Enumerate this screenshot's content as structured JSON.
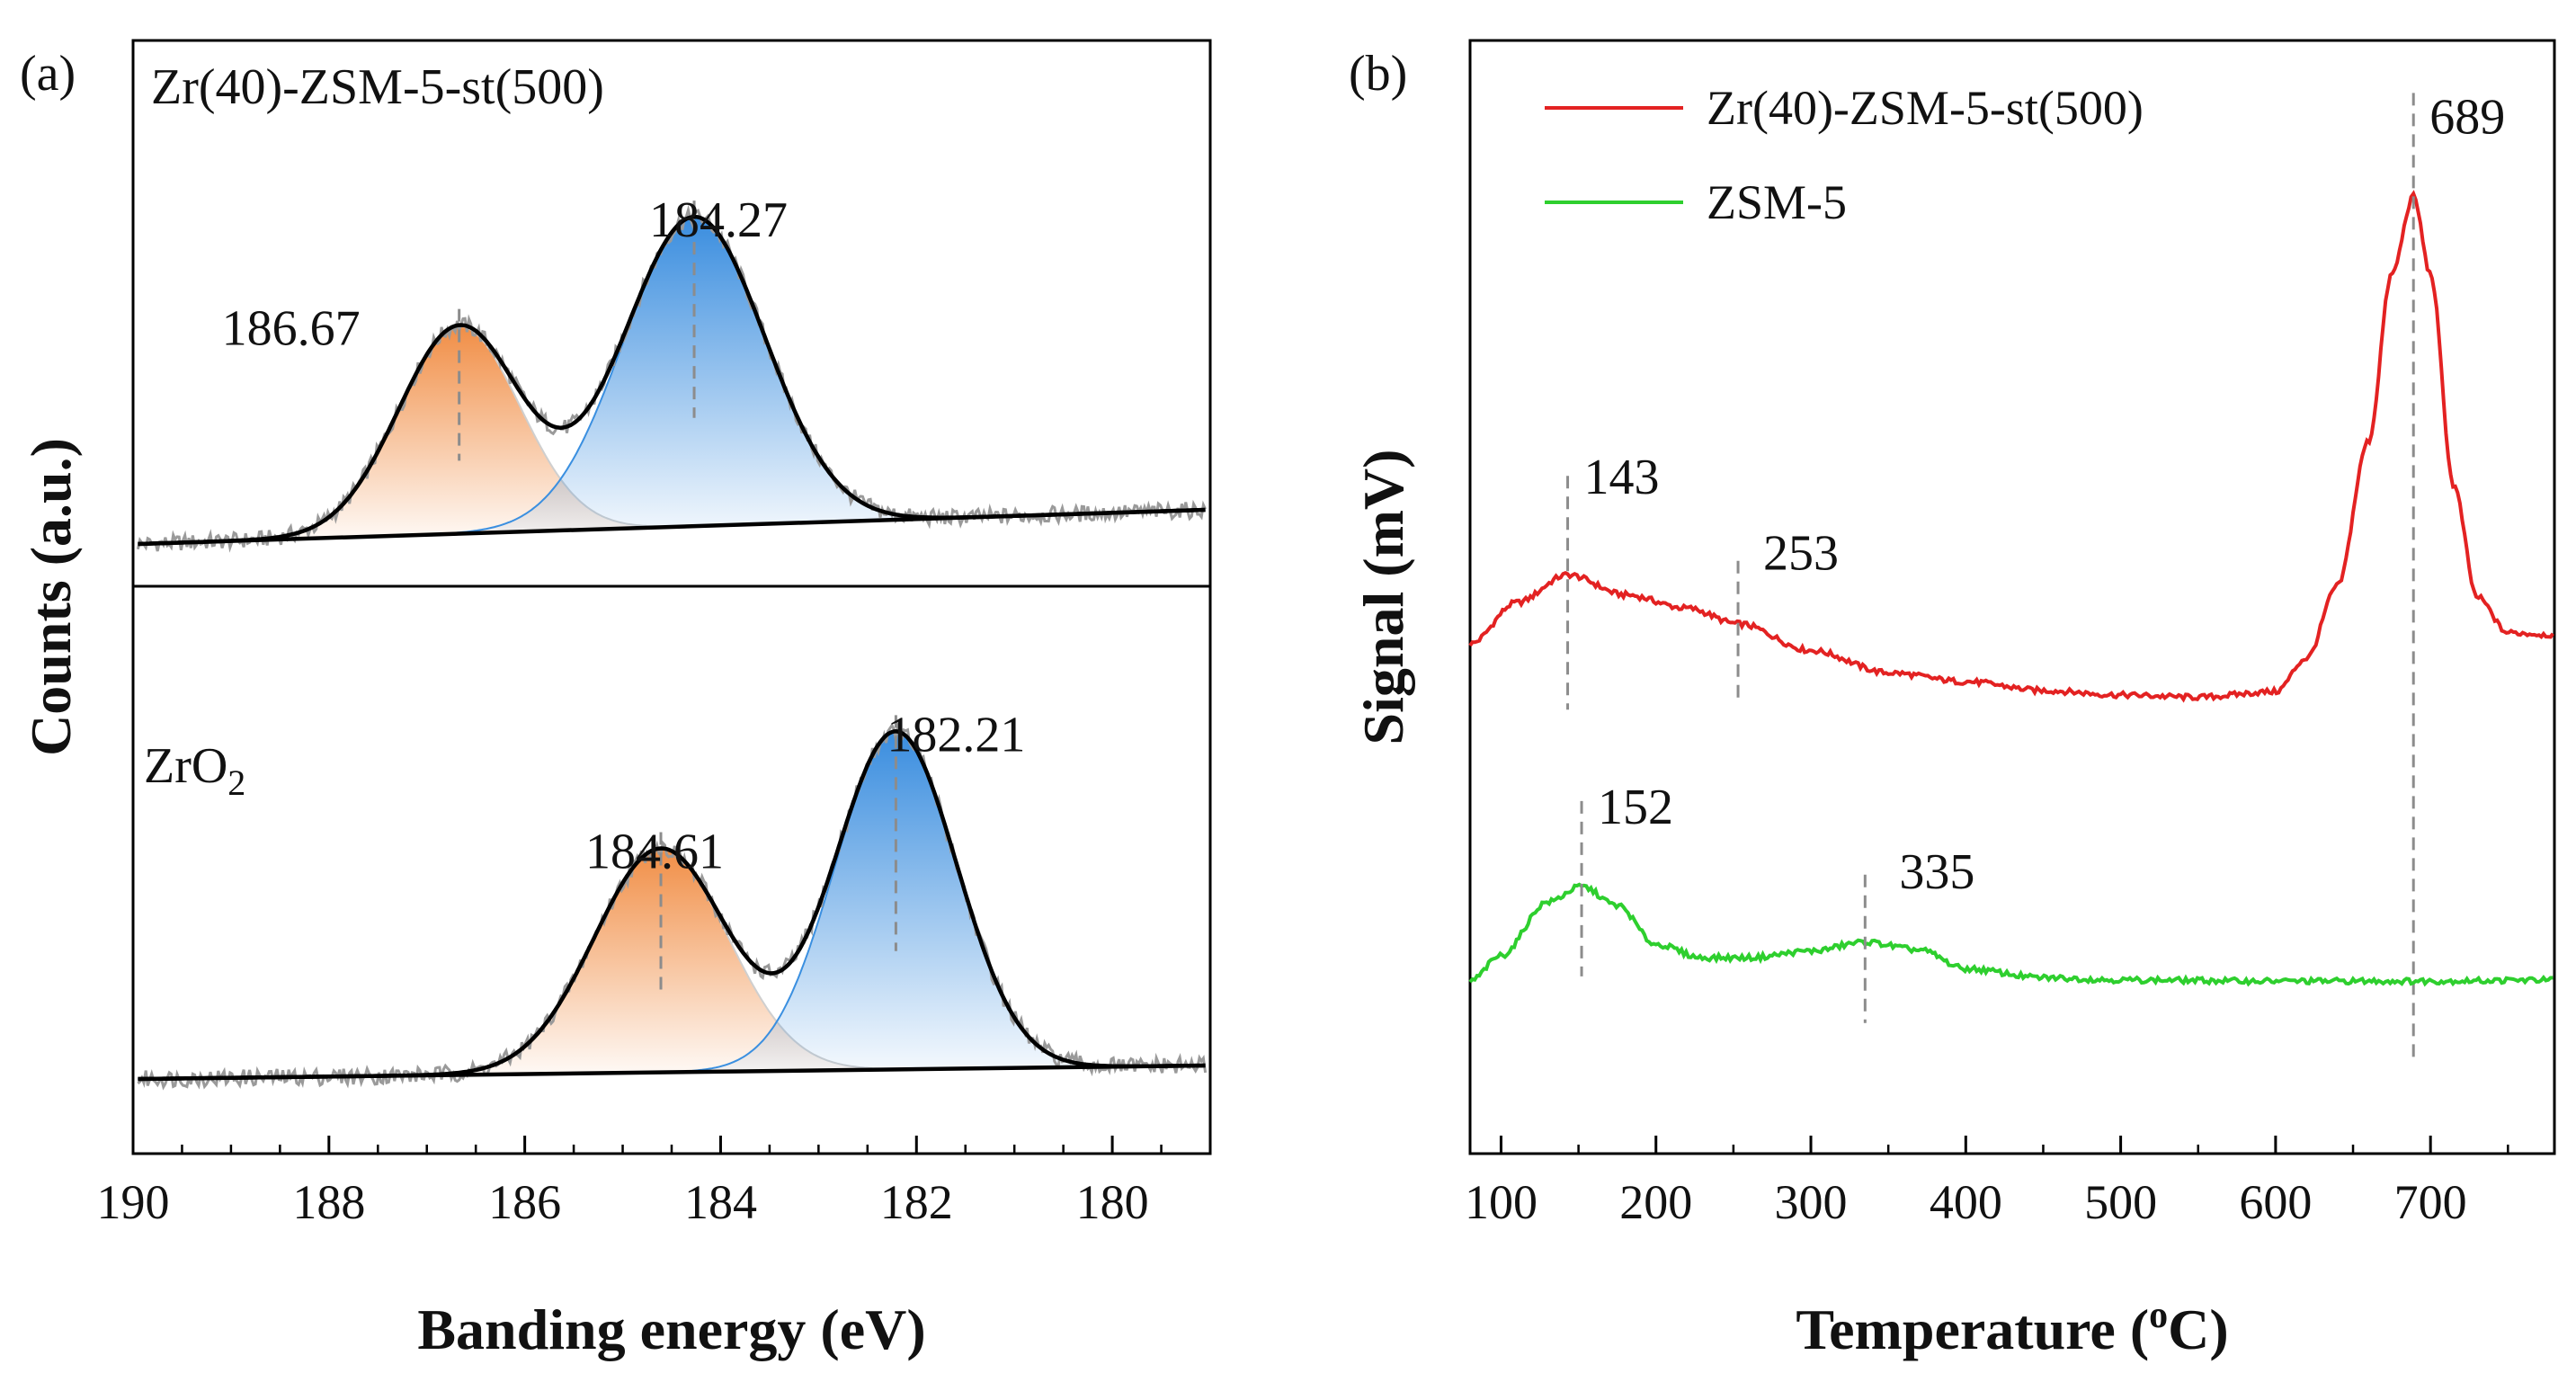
{
  "chart_data": [
    {
      "panel_label": "(a)",
      "type": "line",
      "xlabel": "Banding energy (eV)",
      "ylabel": "Counts (a.u.)",
      "xlim": [
        190,
        179
      ],
      "ylim": [
        0,
        2.1
      ],
      "xticks": [
        190,
        188,
        186,
        184,
        182,
        180
      ],
      "x_minor_step": 0.5,
      "colors": {
        "peak_low_energy": "#3a8fe0",
        "peak_high_energy": "#f39a55",
        "envelope": "#000000",
        "raw": "#9a9a9a",
        "marker": "#8c8c8c"
      },
      "subplots": [
        {
          "label": "Zr(40)-ZSM-5-st(500)",
          "label_sub": "",
          "baseline": [
            0.0,
            0.12
          ],
          "peaks": [
            {
              "center": 186.67,
              "amplitude": 0.57,
              "sigma": 0.62,
              "color": "#f39a55",
              "label": "186.67"
            },
            {
              "center": 184.27,
              "amplitude": 0.85,
              "sigma": 0.72,
              "color": "#3a8fe0",
              "label": "184.27"
            }
          ]
        },
        {
          "label": "ZrO",
          "label_sub": "2",
          "baseline": [
            0.0,
            0.06
          ],
          "peaks": [
            {
              "center": 184.61,
              "amplitude": 0.59,
              "sigma": 0.68,
              "color": "#f39a55",
              "label": "184.61"
            },
            {
              "center": 182.21,
              "amplitude": 0.89,
              "sigma": 0.62,
              "color": "#3a8fe0",
              "label": "182.21"
            }
          ]
        }
      ]
    },
    {
      "panel_label": "(b)",
      "type": "line",
      "xlabel": "Temperature (",
      "xlabel_sup": "o",
      "xlabel_end": "C)",
      "ylabel": "Signal (mV)",
      "xlim": [
        80,
        780
      ],
      "ylim": [
        0,
        100
      ],
      "xticks": [
        100,
        200,
        300,
        400,
        500,
        600,
        700
      ],
      "x_minor_step": 50,
      "series": [
        {
          "name": "Zr(40)-ZSM-5-st(500)",
          "color": "#e32222",
          "x": [
            80,
            110,
            143,
            180,
            220,
            253,
            300,
            350,
            400,
            450,
            500,
            550,
            600,
            620,
            640,
            660,
            675,
            689,
            700,
            715,
            730,
            750,
            780
          ],
          "y": [
            45.8,
            49.5,
            52.0,
            50.2,
            49.0,
            47.6,
            45.2,
            43.2,
            42.4,
            41.6,
            41.2,
            41.0,
            41.5,
            44.5,
            51.0,
            64.0,
            79.0,
            86.0,
            79.0,
            60.0,
            50.0,
            46.8,
            46.6
          ],
          "peaks": [
            {
              "x": 143,
              "label": "143"
            },
            {
              "x": 253,
              "label": "253"
            },
            {
              "x": 689,
              "label": "689"
            }
          ]
        },
        {
          "name": "ZSM-5",
          "color": "#2ecf2e",
          "x": [
            80,
            100,
            130,
            152,
            175,
            200,
            230,
            260,
            300,
            335,
            370,
            400,
            450,
            500,
            600,
            700,
            780
          ],
          "y": [
            15.5,
            17.8,
            22.6,
            24.0,
            22.3,
            18.8,
            17.6,
            17.6,
            18.2,
            19.0,
            18.3,
            16.6,
            15.8,
            15.6,
            15.5,
            15.5,
            15.6
          ],
          "peaks": [
            {
              "x": 152,
              "label": "152"
            },
            {
              "x": 335,
              "label": "335"
            }
          ]
        }
      ]
    }
  ]
}
